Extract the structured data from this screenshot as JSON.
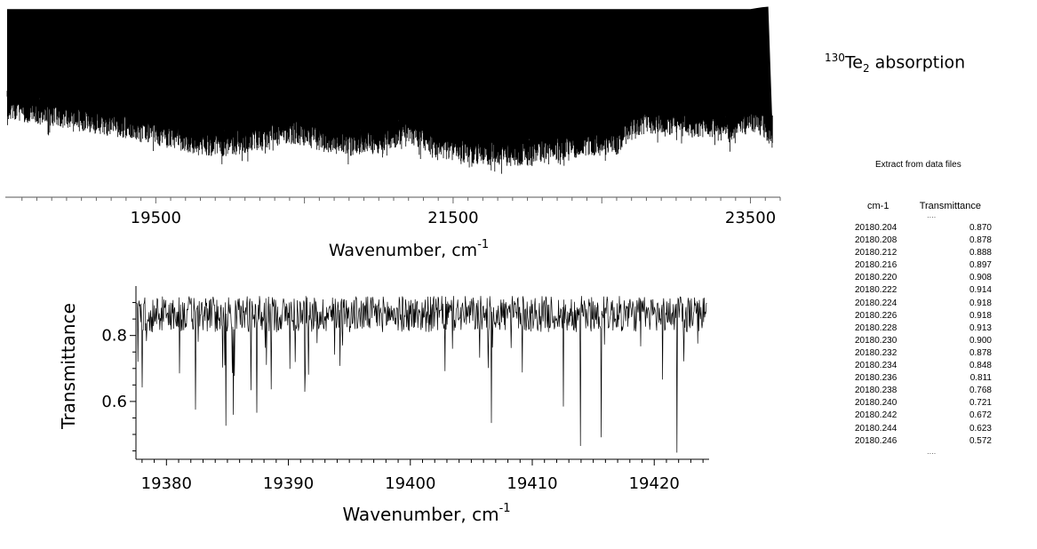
{
  "title": {
    "isotope": "130",
    "element": "Te",
    "subscript": "2",
    "rest": " absorption"
  },
  "table": {
    "caption": "Extract from data files",
    "col_wavenumber": "cm-1",
    "col_transmittance": "Transmittance",
    "ellipsis": "….",
    "rows": [
      {
        "cm": "20180.204",
        "t": "0.870"
      },
      {
        "cm": "20180.208",
        "t": "0.878"
      },
      {
        "cm": "20180.212",
        "t": "0.888"
      },
      {
        "cm": "20180.216",
        "t": "0.897"
      },
      {
        "cm": "20180.220",
        "t": "0.908"
      },
      {
        "cm": "20180.222",
        "t": "0.914"
      },
      {
        "cm": "20180.224",
        "t": "0.918"
      },
      {
        "cm": "20180.226",
        "t": "0.918"
      },
      {
        "cm": "20180.228",
        "t": "0.913"
      },
      {
        "cm": "20180.230",
        "t": "0.900"
      },
      {
        "cm": "20180.232",
        "t": "0.878"
      },
      {
        "cm": "20180.234",
        "t": "0.848"
      },
      {
        "cm": "20180.236",
        "t": "0.811"
      },
      {
        "cm": "20180.238",
        "t": "0.768"
      },
      {
        "cm": "20180.240",
        "t": "0.721"
      },
      {
        "cm": "20180.242",
        "t": "0.672"
      },
      {
        "cm": "20180.244",
        "t": "0.623"
      },
      {
        "cm": "20180.246",
        "t": "0.572"
      }
    ]
  },
  "chart_data": [
    {
      "type": "line",
      "xlabel": "Wavenumber,  cm",
      "xlabel_sup": "-1",
      "xlim": [
        18500,
        23700
      ],
      "ylim": [
        0.3,
        1.0
      ],
      "xticks": [
        19500,
        21500,
        23500
      ],
      "xtick_labels": [
        "19500",
        "21500",
        "23500"
      ],
      "envelope": {
        "x": [
          18500,
          18700,
          19000,
          19300,
          19600,
          19800,
          20000,
          20200,
          20400,
          20600,
          20800,
          21000,
          21200,
          21400,
          21600,
          21800,
          22000,
          22200,
          22400,
          22600,
          22700,
          22800,
          23000,
          23200,
          23400,
          23500,
          23600,
          23650
        ],
        "upper": [
          0.97,
          0.97,
          0.97,
          0.97,
          0.97,
          0.97,
          0.97,
          0.97,
          0.97,
          0.97,
          0.97,
          0.97,
          0.97,
          0.97,
          0.97,
          0.97,
          0.97,
          0.97,
          0.97,
          0.97,
          0.97,
          0.97,
          0.97,
          0.97,
          0.97,
          0.97,
          0.98,
          0.98
        ],
        "lower": [
          0.52,
          0.5,
          0.47,
          0.44,
          0.4,
          0.37,
          0.37,
          0.39,
          0.42,
          0.39,
          0.37,
          0.38,
          0.42,
          0.36,
          0.34,
          0.33,
          0.33,
          0.35,
          0.37,
          0.37,
          0.45,
          0.46,
          0.45,
          0.44,
          0.42,
          0.47,
          0.44,
          0.4
        ]
      }
    },
    {
      "type": "line",
      "xlabel": "Wavenumber, cm",
      "xlabel_sup": "-1",
      "ylabel": "Transmittance",
      "xlim": [
        19377.5,
        19424.5
      ],
      "ylim": [
        0.43,
        0.95
      ],
      "xticks": [
        19380,
        19390,
        19400,
        19410,
        19420
      ],
      "xtick_labels": [
        "19380",
        "19390",
        "19400",
        "19410",
        "19420"
      ],
      "yticks": [
        0.6,
        0.8
      ],
      "ytick_labels": [
        "0.6",
        "0.8"
      ],
      "baseline_range": [
        0.81,
        0.92
      ],
      "min_transmittance": 0.44
    }
  ]
}
